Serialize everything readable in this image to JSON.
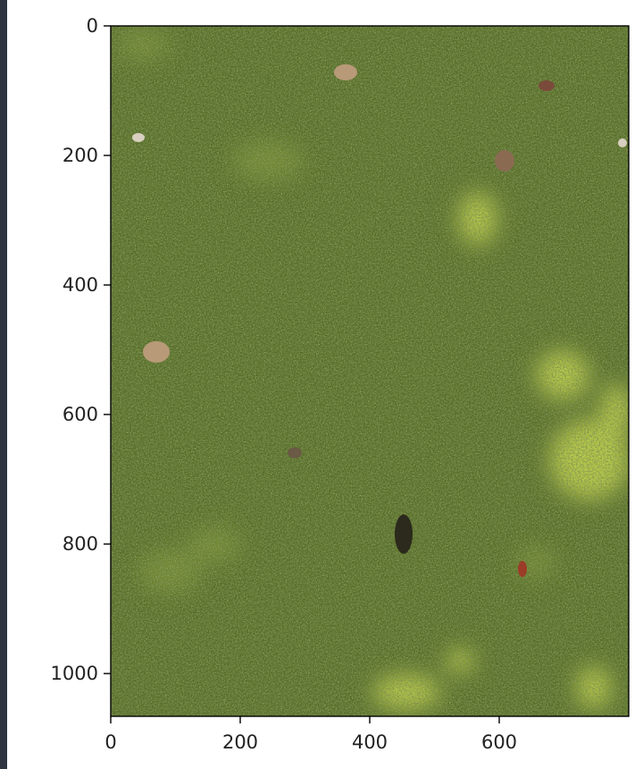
{
  "figure": {
    "type": "image-plot",
    "x_ticks": [
      "0",
      "200",
      "400",
      "600"
    ],
    "x_tick_values": [
      0,
      200,
      400,
      600
    ],
    "y_ticks": [
      "0",
      "200",
      "400",
      "600",
      "800",
      "1000"
    ],
    "y_tick_values": [
      0,
      200,
      400,
      600,
      800,
      1000
    ],
    "x_range": [
      0,
      800
    ],
    "y_range": [
      0,
      1066
    ],
    "y_inverted": true,
    "grid": false,
    "image_subject": "grass",
    "colors": {
      "grass_dark": "#2f3f17",
      "grass_mid": "#556b26",
      "grass_light": "#8aa33a",
      "sunlit": "#c9d84a",
      "leaf": "#b89a78",
      "axis": "#000000",
      "dark_strip": "#2e3440"
    }
  }
}
